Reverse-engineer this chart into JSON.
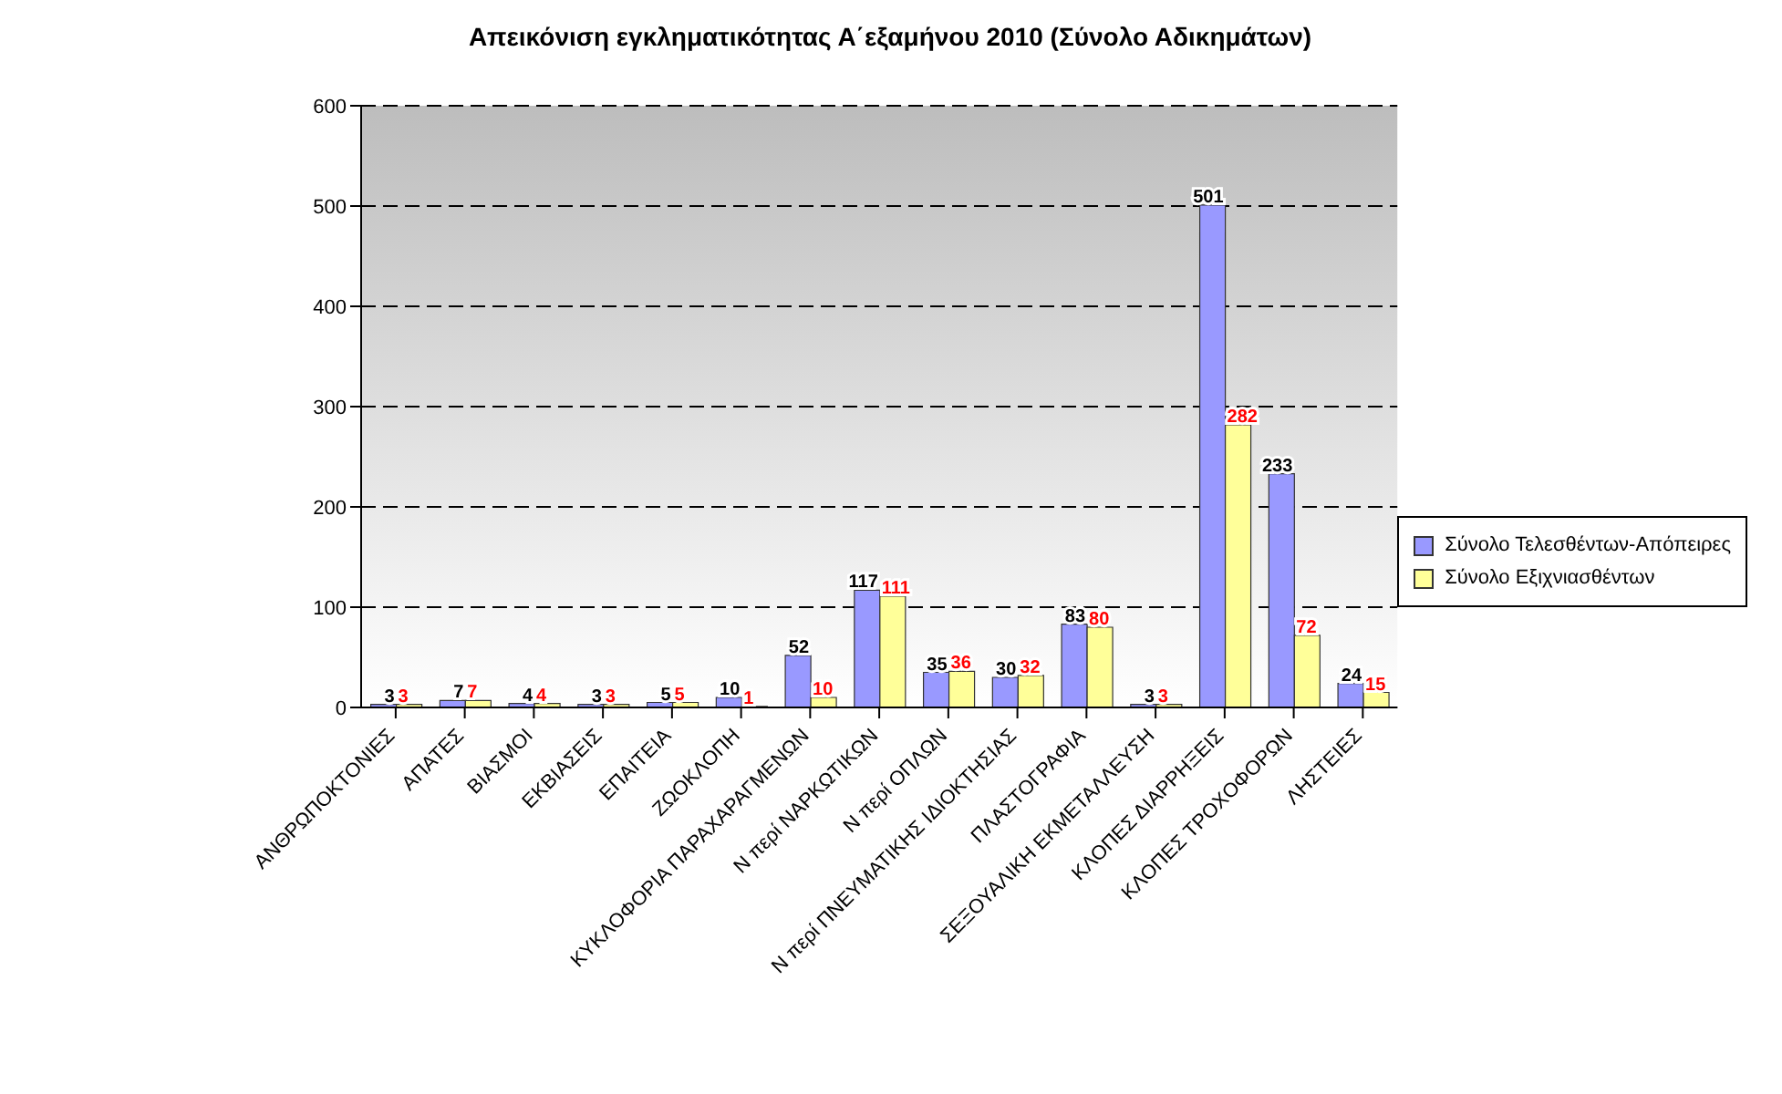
{
  "chart_data": {
    "type": "bar",
    "title": "Απεικόνιση εγκληματικότητας Α΄εξαμήνου 2010 (Σύνολο Αδικημάτων)",
    "categories": [
      "ΑΝΘΡΩΠΟΚΤΟΝΙΕΣ",
      "ΑΠΑΤΕΣ",
      "ΒΙΑΣΜΟΙ",
      "ΕΚΒΙΑΣΕΙΣ",
      "ΕΠΑΙΤΕΙΑ",
      "ΖΩΟΚΛΟΠΗ",
      "ΚΥΚΛΟΦΟΡΙΑ ΠΑΡΑΧΑΡΑΓΜΕΝΩΝ",
      "Ν περί ΝΑΡΚΩΤΙΚΩΝ",
      "Ν περί ΟΠΛΩΝ",
      "Ν περί ΠΝΕΥΜΑΤΙΚΗΣ ΙΔΙΟΚΤΗΣΙΑΣ",
      "ΠΛΑΣΤΟΓΡΑΦΙΑ",
      "ΣΕΞΟΥΑΛΙΚΗ ΕΚΜΕΤΑΛΛΕΥΣΗ",
      "ΚΛΟΠΕΣ ΔΙΑΡΡΗΞΕΙΣ",
      "ΚΛΟΠΕΣ ΤΡΟΧΟΦΟΡΩΝ",
      "ΛΗΣΤΕΙΕΣ"
    ],
    "series": [
      {
        "name": "Σύνολο Τελεσθέντων-Απόπειρες",
        "color": "#9999ff",
        "values": [
          3,
          7,
          4,
          3,
          5,
          10,
          52,
          117,
          35,
          30,
          83,
          3,
          501,
          233,
          24
        ]
      },
      {
        "name": "Σύνολο Εξιχνιασθέντων",
        "color": "#ffff99",
        "values": [
          3,
          7,
          4,
          3,
          5,
          1,
          10,
          111,
          36,
          32,
          80,
          3,
          282,
          72,
          15
        ]
      }
    ],
    "ylim": [
      0,
      600
    ],
    "yticks": [
      0,
      100,
      200,
      300,
      400,
      500,
      600
    ],
    "grid": "y",
    "legend": "right",
    "data_labels": true
  }
}
